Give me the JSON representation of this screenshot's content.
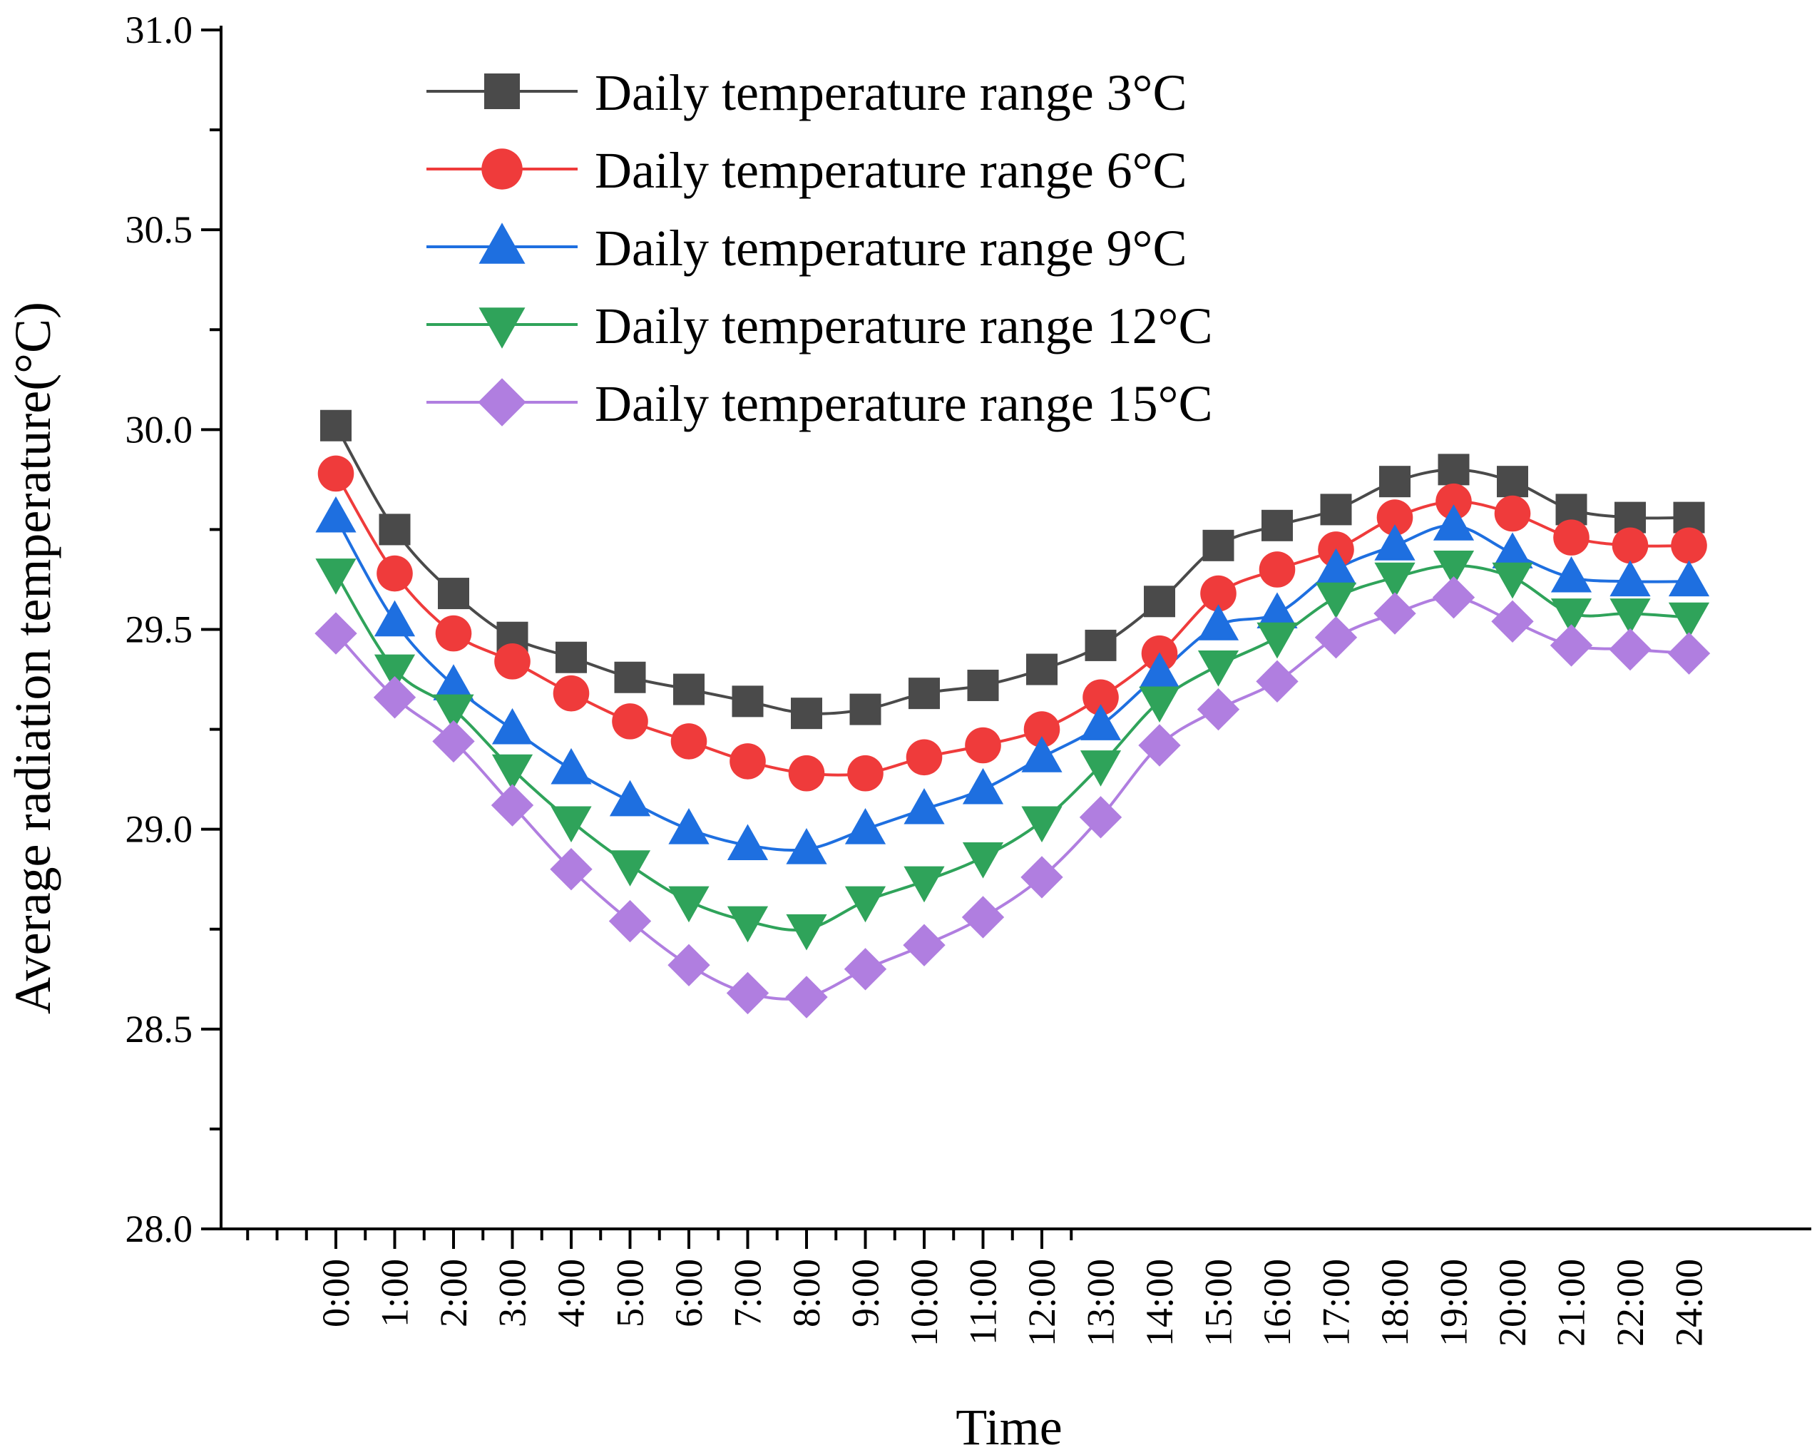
{
  "chart_data": {
    "type": "line",
    "title": "",
    "xlabel": "Time",
    "ylabel": "Average radiation temperature(°C)",
    "ylim": [
      28.0,
      31.0
    ],
    "yticks": [
      "28.0",
      "28.5",
      "29.0",
      "29.5",
      "30.0",
      "30.5",
      "31.0"
    ],
    "ytick_values": [
      28.0,
      28.5,
      29.0,
      29.5,
      30.0,
      30.5,
      31.0
    ],
    "categories": [
      "0:00",
      "1:00",
      "2:00",
      "3:00",
      "4:00",
      "5:00",
      "6:00",
      "7:00",
      "8:00",
      "9:00",
      "10:00",
      "11:00",
      "12:00",
      "13:00",
      "14:00",
      "15:00",
      "16:00",
      "17:00",
      "18:00",
      "19:00",
      "20:00",
      "21:00",
      "22:00",
      "24:00"
    ],
    "legend_position": "top-center",
    "series": [
      {
        "name": "Daily temperature range 3°C",
        "color": "#4a4a4a",
        "marker": "square",
        "values": [
          30.01,
          29.75,
          29.59,
          29.48,
          29.43,
          29.38,
          29.35,
          29.32,
          29.29,
          29.3,
          29.34,
          29.36,
          29.4,
          29.46,
          29.57,
          29.71,
          29.76,
          29.8,
          29.87,
          29.9,
          29.87,
          29.8,
          29.78,
          29.78
        ]
      },
      {
        "name": "Daily temperature range 6°C",
        "color": "#ef3b3b",
        "marker": "circle",
        "values": [
          29.89,
          29.64,
          29.49,
          29.42,
          29.34,
          29.27,
          29.22,
          29.17,
          29.14,
          29.14,
          29.18,
          29.21,
          29.25,
          29.33,
          29.44,
          29.59,
          29.65,
          29.7,
          29.78,
          29.82,
          29.79,
          29.73,
          29.71,
          29.71
        ]
      },
      {
        "name": "Daily temperature range 9°C",
        "color": "#1e6fe0",
        "marker": "triangle-up",
        "values": [
          29.78,
          29.52,
          29.36,
          29.25,
          29.15,
          29.07,
          29.0,
          28.96,
          28.95,
          29.0,
          29.05,
          29.1,
          29.18,
          29.26,
          29.39,
          29.51,
          29.54,
          29.65,
          29.71,
          29.76,
          29.69,
          29.63,
          29.62,
          29.62
        ]
      },
      {
        "name": "Daily temperature range 12°C",
        "color": "#2fa35a",
        "marker": "triangle-down",
        "values": [
          29.64,
          29.4,
          29.3,
          29.15,
          29.02,
          28.91,
          28.82,
          28.77,
          28.75,
          28.82,
          28.87,
          28.93,
          29.02,
          29.16,
          29.32,
          29.41,
          29.48,
          29.58,
          29.63,
          29.66,
          29.63,
          29.54,
          29.54,
          29.53
        ]
      },
      {
        "name": "Daily temperature range 15°C",
        "color": "#b07ee0",
        "marker": "diamond",
        "values": [
          29.49,
          29.33,
          29.22,
          29.06,
          28.9,
          28.77,
          28.66,
          28.59,
          28.58,
          28.65,
          28.71,
          28.78,
          28.88,
          29.03,
          29.21,
          29.3,
          29.37,
          29.48,
          29.54,
          29.58,
          29.52,
          29.46,
          29.45,
          29.44
        ]
      }
    ]
  }
}
